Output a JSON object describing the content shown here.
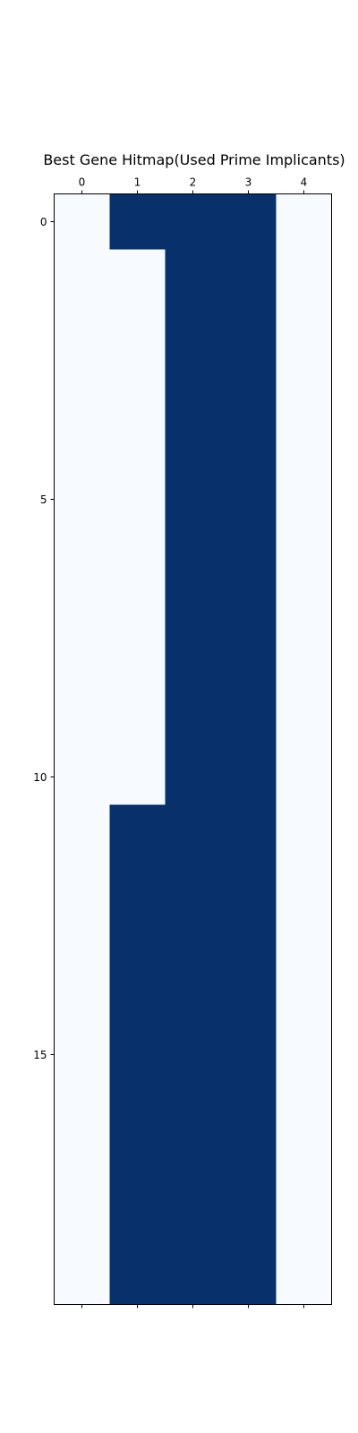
{
  "chart_data": {
    "type": "heatmap",
    "title": "Best Gene Hitmap(Used Prime Implicants)",
    "xlabel": "",
    "ylabel": "",
    "x_tick_values": [
      0,
      1,
      2,
      3,
      4
    ],
    "y_tick_values": [
      0,
      5,
      10,
      15
    ],
    "x_ticks_position": "top",
    "grid": false,
    "legend": "none",
    "colormap": "Blues",
    "color_low": "#f7fbff",
    "color_high": "#08306b",
    "n_rows": 20,
    "n_cols": 5,
    "values": [
      [
        0,
        1,
        1,
        1,
        0
      ],
      [
        0,
        0,
        1,
        1,
        0
      ],
      [
        0,
        0,
        1,
        1,
        0
      ],
      [
        0,
        0,
        1,
        1,
        0
      ],
      [
        0,
        0,
        1,
        1,
        0
      ],
      [
        0,
        0,
        1,
        1,
        0
      ],
      [
        0,
        0,
        1,
        1,
        0
      ],
      [
        0,
        0,
        1,
        1,
        0
      ],
      [
        0,
        0,
        1,
        1,
        0
      ],
      [
        0,
        0,
        1,
        1,
        0
      ],
      [
        0,
        0,
        1,
        1,
        0
      ],
      [
        0,
        1,
        1,
        1,
        0
      ],
      [
        0,
        1,
        1,
        1,
        0
      ],
      [
        0,
        1,
        1,
        1,
        0
      ],
      [
        0,
        1,
        1,
        1,
        0
      ],
      [
        0,
        1,
        1,
        1,
        0
      ],
      [
        0,
        1,
        1,
        1,
        0
      ],
      [
        0,
        1,
        1,
        1,
        0
      ],
      [
        0,
        1,
        1,
        1,
        0
      ],
      [
        0,
        1,
        1,
        1,
        0
      ]
    ]
  }
}
